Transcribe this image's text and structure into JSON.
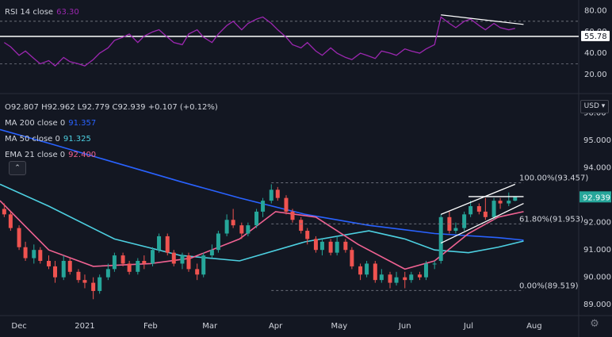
{
  "rsi_legend": {
    "title": "RSI 14 close",
    "value": "63.30"
  },
  "ohlc_legend": {
    "open": "O92.807",
    "high": "H92.962",
    "low": "L92.779",
    "close": "C92.939",
    "change": "+0.107 (+0.12%)"
  },
  "ma200_legend": {
    "title": "MA 200 close 0",
    "value": "91.357"
  },
  "ma50_legend": {
    "title": "MA 50 close 0",
    "value": "91.325"
  },
  "ema21_legend": {
    "title": "EMA 21 close 0",
    "value": "92.400"
  },
  "currency": "USD",
  "collapse_icon": "chevron-up-icon",
  "settings_icon": "gear-icon",
  "colors": {
    "background": "#131722",
    "up": "#26a69a",
    "down": "#ef5350",
    "ma200": "#2962ff",
    "ma50": "#4dd0e1",
    "ema21": "#f06292",
    "rsi": "#9c27b0",
    "text": "#d1d4dc",
    "price_tag": "#26a69a"
  },
  "chart_data": [
    {
      "type": "line",
      "name": "RSI 14 close",
      "ylim": [
        5,
        87
      ],
      "ytick_labels": [
        "80.00",
        "60.00",
        "40.00",
        "20.00"
      ],
      "yticks": [
        80,
        60,
        40,
        20
      ],
      "levels": [
        70,
        30
      ],
      "horizontal_line": 55.78,
      "horizontal_line_label": "55.78",
      "x": [
        "2020-11-24",
        "2020-11-27",
        "2020-12-01",
        "2020-12-04",
        "2020-12-08",
        "2020-12-11",
        "2020-12-15",
        "2020-12-18",
        "2020-12-22",
        "2020-12-25",
        "2020-12-29",
        "2021-01-01",
        "2021-01-05",
        "2021-01-08",
        "2021-01-12",
        "2021-01-15",
        "2021-01-19",
        "2021-01-22",
        "2021-01-26",
        "2021-01-29",
        "2021-02-02",
        "2021-02-05",
        "2021-02-09",
        "2021-02-12",
        "2021-02-16",
        "2021-02-19",
        "2021-02-23",
        "2021-02-26",
        "2021-03-02",
        "2021-03-05",
        "2021-03-09",
        "2021-03-12",
        "2021-03-16",
        "2021-03-19",
        "2021-03-23",
        "2021-03-26",
        "2021-03-30",
        "2021-04-02",
        "2021-04-06",
        "2021-04-09",
        "2021-04-13",
        "2021-04-16",
        "2021-04-20",
        "2021-04-23",
        "2021-04-27",
        "2021-04-30",
        "2021-05-04",
        "2021-05-07",
        "2021-05-11",
        "2021-05-14",
        "2021-05-18",
        "2021-05-21",
        "2021-05-25",
        "2021-05-28",
        "2021-06-01",
        "2021-06-04",
        "2021-06-08",
        "2021-06-11",
        "2021-06-15",
        "2021-06-18",
        "2021-06-22",
        "2021-06-25",
        "2021-06-29",
        "2021-07-02",
        "2021-07-06",
        "2021-07-09",
        "2021-07-13",
        "2021-07-16",
        "2021-07-20",
        "2021-07-23"
      ],
      "y": [
        50,
        46,
        38,
        42,
        35,
        30,
        33,
        28,
        36,
        32,
        30,
        28,
        34,
        40,
        45,
        52,
        55,
        58,
        50,
        56,
        60,
        62,
        55,
        50,
        48,
        58,
        62,
        55,
        50,
        58,
        66,
        70,
        62,
        68,
        72,
        74,
        68,
        62,
        55,
        48,
        45,
        50,
        42,
        38,
        45,
        40,
        36,
        34,
        40,
        38,
        35,
        42,
        40,
        38,
        44,
        42,
        40,
        44,
        48,
        74,
        68,
        64,
        70,
        72,
        66,
        62,
        68,
        64,
        62,
        63.3
      ],
      "trendline": {
        "from": [
          "2021-06-18",
          76
        ],
        "to": [
          "2021-07-27",
          67
        ]
      }
    },
    {
      "type": "candlestick",
      "name": "Price",
      "ylim": [
        88.6,
        96.6
      ],
      "ytick_labels": [
        "96.00",
        "95.000",
        "94.000",
        "93.000",
        "92.000",
        "91.000",
        "90.000",
        "89.000"
      ],
      "yticks": [
        96,
        95,
        94,
        93,
        92,
        91,
        90,
        89
      ],
      "xtick_labels": [
        "Dec",
        "2021",
        "Feb",
        "Mar",
        "Apr",
        "May",
        "Jun",
        "Jul",
        "Aug"
      ],
      "xticks": [
        "2020-12-01",
        "2021-01-01",
        "2021-02-01",
        "2021-03-01",
        "2021-04-01",
        "2021-05-01",
        "2021-06-01",
        "2021-07-01",
        "2021-08-01"
      ],
      "x_range": [
        "2020-11-22",
        "2021-08-22"
      ],
      "last_price": "92.939",
      "last_price_value": 92.939,
      "candles": [
        {
          "d": "2020-11-24",
          "o": 92.5,
          "h": 92.7,
          "l": 92.2,
          "c": 92.3
        },
        {
          "d": "2020-11-27",
          "o": 92.3,
          "h": 92.4,
          "l": 91.7,
          "c": 91.8
        },
        {
          "d": "2020-12-01",
          "o": 91.8,
          "h": 91.9,
          "l": 91.0,
          "c": 91.1
        },
        {
          "d": "2020-12-04",
          "o": 91.1,
          "h": 91.3,
          "l": 90.6,
          "c": 90.7
        },
        {
          "d": "2020-12-08",
          "o": 90.7,
          "h": 91.2,
          "l": 90.5,
          "c": 91.0
        },
        {
          "d": "2020-12-11",
          "o": 91.0,
          "h": 91.1,
          "l": 90.5,
          "c": 90.6
        },
        {
          "d": "2020-12-15",
          "o": 90.6,
          "h": 90.8,
          "l": 90.3,
          "c": 90.4
        },
        {
          "d": "2020-12-18",
          "o": 90.4,
          "h": 90.6,
          "l": 89.8,
          "c": 90.0
        },
        {
          "d": "2020-12-22",
          "o": 90.0,
          "h": 90.8,
          "l": 89.9,
          "c": 90.6
        },
        {
          "d": "2020-12-25",
          "o": 90.6,
          "h": 90.7,
          "l": 90.1,
          "c": 90.2
        },
        {
          "d": "2020-12-29",
          "o": 90.2,
          "h": 90.3,
          "l": 89.8,
          "c": 89.9
        },
        {
          "d": "2021-01-01",
          "o": 89.9,
          "h": 90.1,
          "l": 89.6,
          "c": 89.8
        },
        {
          "d": "2021-01-05",
          "o": 89.8,
          "h": 90.0,
          "l": 89.2,
          "c": 89.5
        },
        {
          "d": "2021-01-08",
          "o": 89.5,
          "h": 90.1,
          "l": 89.4,
          "c": 90.0
        },
        {
          "d": "2021-01-12",
          "o": 90.0,
          "h": 90.5,
          "l": 89.9,
          "c": 90.3
        },
        {
          "d": "2021-01-15",
          "o": 90.3,
          "h": 90.9,
          "l": 90.2,
          "c": 90.8
        },
        {
          "d": "2021-01-19",
          "o": 90.8,
          "h": 90.9,
          "l": 90.4,
          "c": 90.5
        },
        {
          "d": "2021-01-22",
          "o": 90.5,
          "h": 90.6,
          "l": 90.1,
          "c": 90.2
        },
        {
          "d": "2021-01-26",
          "o": 90.2,
          "h": 90.7,
          "l": 90.1,
          "c": 90.6
        },
        {
          "d": "2021-01-29",
          "o": 90.6,
          "h": 90.8,
          "l": 90.3,
          "c": 90.5
        },
        {
          "d": "2021-02-02",
          "o": 90.5,
          "h": 91.1,
          "l": 90.4,
          "c": 91.0
        },
        {
          "d": "2021-02-05",
          "o": 91.0,
          "h": 91.6,
          "l": 90.9,
          "c": 91.5
        },
        {
          "d": "2021-02-09",
          "o": 91.5,
          "h": 91.6,
          "l": 90.8,
          "c": 90.9
        },
        {
          "d": "2021-02-12",
          "o": 90.9,
          "h": 91.0,
          "l": 90.4,
          "c": 90.5
        },
        {
          "d": "2021-02-16",
          "o": 90.5,
          "h": 90.9,
          "l": 90.3,
          "c": 90.8
        },
        {
          "d": "2021-02-19",
          "o": 90.8,
          "h": 90.9,
          "l": 90.2,
          "c": 90.3
        },
        {
          "d": "2021-02-23",
          "o": 90.3,
          "h": 90.5,
          "l": 89.9,
          "c": 90.1
        },
        {
          "d": "2021-02-26",
          "o": 90.1,
          "h": 90.9,
          "l": 90.0,
          "c": 90.8
        },
        {
          "d": "2021-03-02",
          "o": 90.8,
          "h": 91.2,
          "l": 90.7,
          "c": 91.0
        },
        {
          "d": "2021-03-05",
          "o": 91.0,
          "h": 91.7,
          "l": 90.9,
          "c": 91.6
        },
        {
          "d": "2021-03-09",
          "o": 91.6,
          "h": 92.3,
          "l": 91.5,
          "c": 92.1
        },
        {
          "d": "2021-03-12",
          "o": 92.1,
          "h": 92.5,
          "l": 91.8,
          "c": 91.9
        },
        {
          "d": "2021-03-16",
          "o": 91.9,
          "h": 92.0,
          "l": 91.4,
          "c": 91.6
        },
        {
          "d": "2021-03-19",
          "o": 91.6,
          "h": 92.0,
          "l": 91.5,
          "c": 91.9
        },
        {
          "d": "2021-03-23",
          "o": 91.9,
          "h": 92.5,
          "l": 91.8,
          "c": 92.4
        },
        {
          "d": "2021-03-26",
          "o": 92.4,
          "h": 92.9,
          "l": 92.2,
          "c": 92.8
        },
        {
          "d": "2021-03-30",
          "o": 92.8,
          "h": 93.4,
          "l": 92.7,
          "c": 93.2
        },
        {
          "d": "2021-04-02",
          "o": 93.2,
          "h": 93.3,
          "l": 92.8,
          "c": 92.9
        },
        {
          "d": "2021-04-06",
          "o": 92.9,
          "h": 93.0,
          "l": 92.3,
          "c": 92.4
        },
        {
          "d": "2021-04-09",
          "o": 92.4,
          "h": 92.5,
          "l": 92.0,
          "c": 92.1
        },
        {
          "d": "2021-04-13",
          "o": 92.1,
          "h": 92.2,
          "l": 91.6,
          "c": 91.7
        },
        {
          "d": "2021-04-16",
          "o": 91.7,
          "h": 91.8,
          "l": 91.2,
          "c": 91.4
        },
        {
          "d": "2021-04-20",
          "o": 91.4,
          "h": 91.5,
          "l": 90.9,
          "c": 91.0
        },
        {
          "d": "2021-04-23",
          "o": 91.0,
          "h": 91.4,
          "l": 90.8,
          "c": 91.3
        },
        {
          "d": "2021-04-27",
          "o": 91.3,
          "h": 91.4,
          "l": 90.8,
          "c": 90.9
        },
        {
          "d": "2021-04-30",
          "o": 90.9,
          "h": 91.5,
          "l": 90.8,
          "c": 91.3
        },
        {
          "d": "2021-05-04",
          "o": 91.3,
          "h": 91.4,
          "l": 90.9,
          "c": 91.0
        },
        {
          "d": "2021-05-07",
          "o": 91.0,
          "h": 91.1,
          "l": 90.3,
          "c": 90.4
        },
        {
          "d": "2021-05-11",
          "o": 90.4,
          "h": 90.5,
          "l": 89.9,
          "c": 90.1
        },
        {
          "d": "2021-05-14",
          "o": 90.1,
          "h": 90.6,
          "l": 90.0,
          "c": 90.5
        },
        {
          "d": "2021-05-18",
          "o": 90.5,
          "h": 90.6,
          "l": 89.8,
          "c": 89.9
        },
        {
          "d": "2021-05-21",
          "o": 89.9,
          "h": 90.3,
          "l": 89.8,
          "c": 90.1
        },
        {
          "d": "2021-05-25",
          "o": 90.1,
          "h": 90.2,
          "l": 89.6,
          "c": 89.8
        },
        {
          "d": "2021-05-28",
          "o": 89.8,
          "h": 90.2,
          "l": 89.7,
          "c": 90.0
        },
        {
          "d": "2021-06-01",
          "o": 90.0,
          "h": 90.2,
          "l": 89.6,
          "c": 89.9
        },
        {
          "d": "2021-06-04",
          "o": 89.9,
          "h": 90.2,
          "l": 89.8,
          "c": 90.1
        },
        {
          "d": "2021-06-08",
          "o": 90.1,
          "h": 90.2,
          "l": 89.9,
          "c": 90.0
        },
        {
          "d": "2021-06-11",
          "o": 90.0,
          "h": 90.6,
          "l": 89.9,
          "c": 90.5
        },
        {
          "d": "2021-06-15",
          "o": 90.5,
          "h": 90.6,
          "l": 90.3,
          "c": 90.5
        },
        {
          "d": "2021-06-18",
          "o": 90.6,
          "h": 92.3,
          "l": 90.5,
          "c": 92.2
        },
        {
          "d": "2021-06-22",
          "o": 92.2,
          "h": 92.4,
          "l": 91.6,
          "c": 91.7
        },
        {
          "d": "2021-06-25",
          "o": 91.7,
          "h": 92.0,
          "l": 91.6,
          "c": 91.8
        },
        {
          "d": "2021-06-29",
          "o": 91.8,
          "h": 92.4,
          "l": 91.7,
          "c": 92.3
        },
        {
          "d": "2021-07-02",
          "o": 92.3,
          "h": 92.8,
          "l": 92.2,
          "c": 92.6
        },
        {
          "d": "2021-07-06",
          "o": 92.6,
          "h": 92.7,
          "l": 92.3,
          "c": 92.4
        },
        {
          "d": "2021-07-09",
          "o": 92.4,
          "h": 92.9,
          "l": 92.1,
          "c": 92.2
        },
        {
          "d": "2021-07-13",
          "o": 92.2,
          "h": 92.9,
          "l": 92.1,
          "c": 92.8
        },
        {
          "d": "2021-07-16",
          "o": 92.8,
          "h": 92.9,
          "l": 92.5,
          "c": 92.7
        },
        {
          "d": "2021-07-20",
          "o": 92.7,
          "h": 93.1,
          "l": 92.6,
          "c": 92.8
        },
        {
          "d": "2021-07-23",
          "o": 92.8,
          "h": 92.96,
          "l": 92.78,
          "c": 92.939
        }
      ],
      "series": [
        {
          "name": "MA 200 close 0",
          "color": "#2962ff",
          "x": [
            "2020-11-22",
            "2020-12-15",
            "2021-01-15",
            "2021-02-15",
            "2021-03-15",
            "2021-04-15",
            "2021-05-15",
            "2021-06-15",
            "2021-07-15",
            "2021-07-27"
          ],
          "y": [
            95.4,
            94.9,
            94.2,
            93.5,
            92.9,
            92.3,
            91.9,
            91.6,
            91.45,
            91.357
          ]
        },
        {
          "name": "MA 50 close 0",
          "color": "#4dd0e1",
          "x": [
            "2020-11-22",
            "2020-12-15",
            "2021-01-15",
            "2021-02-15",
            "2021-03-15",
            "2021-04-15",
            "2021-05-15",
            "2021-06-01",
            "2021-06-15",
            "2021-07-01",
            "2021-07-15",
            "2021-07-27"
          ],
          "y": [
            93.4,
            92.6,
            91.4,
            90.8,
            90.6,
            91.3,
            91.7,
            91.4,
            91.0,
            90.9,
            91.1,
            91.325
          ]
        },
        {
          "name": "EMA 21 close 0",
          "color": "#f06292",
          "x": [
            "2020-11-22",
            "2020-12-15",
            "2021-01-05",
            "2021-02-01",
            "2021-02-20",
            "2021-03-15",
            "2021-04-01",
            "2021-04-20",
            "2021-05-10",
            "2021-06-01",
            "2021-06-15",
            "2021-07-01",
            "2021-07-15",
            "2021-07-27"
          ],
          "y": [
            92.8,
            91.0,
            90.4,
            90.5,
            90.7,
            91.4,
            92.4,
            92.2,
            91.2,
            90.3,
            90.6,
            91.6,
            92.2,
            92.4
          ]
        }
      ],
      "fib_levels": [
        {
          "label": "100.00%(93.457)",
          "value": 93.457
        },
        {
          "label": "61.80%(91.953)",
          "value": 91.953
        },
        {
          "label": "0.00%(89.519)",
          "value": 89.519
        }
      ],
      "fib_x_range": [
        "2021-03-30",
        "2021-07-27"
      ],
      "channel": {
        "upper": {
          "from": [
            "2021-06-18",
            92.3
          ],
          "to": [
            "2021-07-23",
            93.4
          ]
        },
        "lower": {
          "from": [
            "2021-06-18",
            91.25
          ],
          "to": [
            "2021-07-27",
            92.7
          ]
        },
        "top": {
          "from": [
            "2021-07-01",
            92.95
          ],
          "to": [
            "2021-07-27",
            92.95
          ]
        }
      }
    }
  ]
}
